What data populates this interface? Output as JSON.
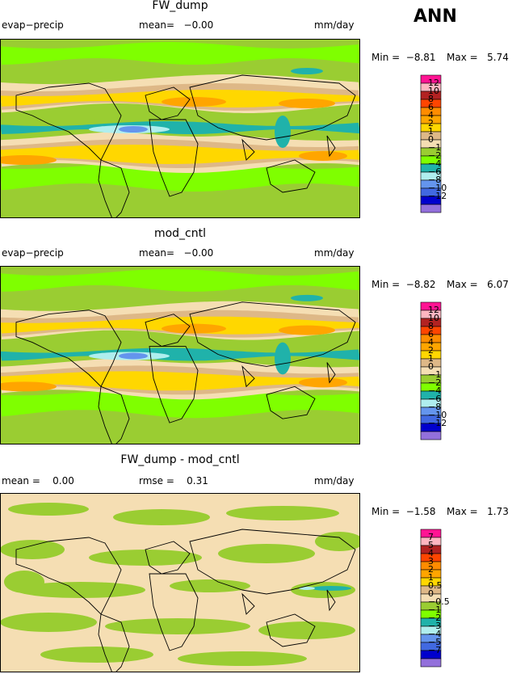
{
  "season": "ANN",
  "panels": [
    {
      "title": "FW_dump",
      "left_label": "evap−precip",
      "center_label": "mean=   −0.00",
      "right_label": "mm/day",
      "min_text": "Min =  −8.81",
      "max_text": "Max =   5.74",
      "levels": [
        "12",
        "10",
        "8",
        "6",
        "4",
        "2",
        "1",
        "0",
        "−1",
        "−2",
        "−4",
        "−6",
        "−8",
        "−10",
        "−12"
      ],
      "kind": "full"
    },
    {
      "title": "mod_cntl",
      "left_label": "evap−precip",
      "center_label": "mean=   −0.00",
      "right_label": "mm/day",
      "min_text": "Min =  −8.82",
      "max_text": "Max =   6.07",
      "levels": [
        "12",
        "10",
        "8",
        "6",
        "4",
        "2",
        "1",
        "0",
        "−1",
        "−2",
        "−4",
        "−6",
        "−8",
        "−10",
        "−12"
      ],
      "kind": "full"
    },
    {
      "title": "FW_dump - mod_cntl",
      "left_label": "mean =    0.00",
      "center_label": "rmse =    0.31",
      "right_label": "mm/day",
      "min_text": "Min =  −1.58",
      "max_text": "Max =   1.73",
      "levels": [
        "7",
        "5",
        "4",
        "3",
        "2",
        "1",
        "0.5",
        "0",
        "−0.5",
        "−1",
        "−2",
        "−3",
        "−4",
        "−5",
        "−7"
      ],
      "kind": "diff"
    }
  ],
  "colorbar_colors": [
    "#ff1493",
    "#ffb6c1",
    "#b22222",
    "#ff4500",
    "#ff8c00",
    "#ffa500",
    "#ffd700",
    "#deb887",
    "#f5deb3",
    "#9acd32",
    "#7fff00",
    "#20b2aa",
    "#afeeee",
    "#6495ed",
    "#4169e1",
    "#0000cd",
    "#9370db"
  ],
  "chart_data": [
    {
      "type": "heatmap",
      "title": "FW_dump",
      "variable": "evap−precip",
      "units": "mm/day",
      "mean": -0.0,
      "min": -8.81,
      "max": 5.74,
      "contour_levels": [
        -12,
        -10,
        -8,
        -6,
        -4,
        -2,
        -1,
        0,
        1,
        2,
        4,
        6,
        8,
        10,
        12
      ]
    },
    {
      "type": "heatmap",
      "title": "mod_cntl",
      "variable": "evap−precip",
      "units": "mm/day",
      "mean": -0.0,
      "min": -8.82,
      "max": 6.07,
      "contour_levels": [
        -12,
        -10,
        -8,
        -6,
        -4,
        -2,
        -1,
        0,
        1,
        2,
        4,
        6,
        8,
        10,
        12
      ]
    },
    {
      "type": "heatmap",
      "title": "FW_dump - mod_cntl",
      "units": "mm/day",
      "mean": 0.0,
      "rmse": 0.31,
      "min": -1.58,
      "max": 1.73,
      "contour_levels": [
        -7,
        -5,
        -4,
        -3,
        -2,
        -1,
        -0.5,
        0,
        0.5,
        1,
        2,
        3,
        4,
        5,
        7
      ]
    }
  ]
}
